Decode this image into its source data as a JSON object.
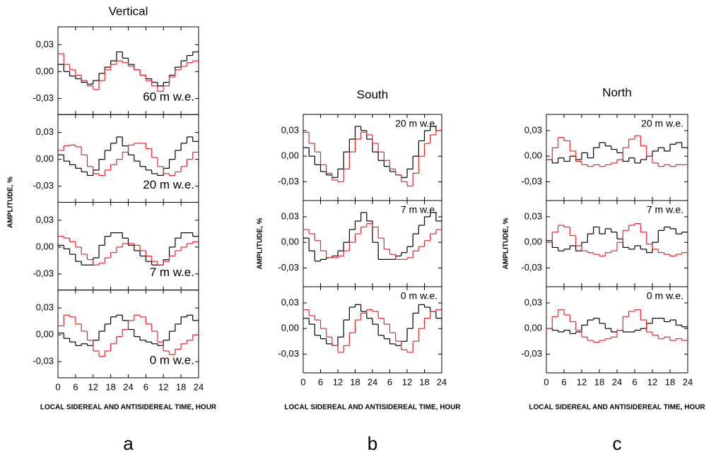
{
  "chart_data": [
    {
      "type": "step",
      "title": "Vertical",
      "ylabel": "AMPLITUDE, %",
      "xlabel": "LOCAL SIDEREAL AND ANTISIDEREAL TIME, HOUR",
      "caption": "a",
      "xlim": [
        0,
        48
      ],
      "xticks": [
        0,
        6,
        12,
        18,
        24,
        {
          "value": 30,
          "label": "6"
        },
        {
          "value": 36,
          "label": "12"
        },
        {
          "value": 42,
          "label": "18"
        },
        {
          "value": 48,
          "label": "24"
        }
      ],
      "x": [
        1,
        3,
        5,
        7,
        9,
        11,
        13,
        15,
        17,
        19,
        21,
        23,
        25,
        27,
        29,
        31,
        33,
        35,
        37,
        39,
        41,
        43,
        45,
        47
      ],
      "ylim": [
        -0.048,
        0.05
      ],
      "yticks": [
        {
          "value": 0.03,
          "label": "0,03"
        },
        {
          "value": 0,
          "label": "0,00"
        },
        {
          "value": -0.03,
          "label": "-0,03"
        }
      ],
      "panels": [
        {
          "annotation": "60 m w.e.",
          "series": [
            {
              "color": "#000000",
              "values": [
                0.008,
                0.0,
                -0.005,
                -0.008,
                -0.012,
                -0.014,
                -0.01,
                -0.002,
                0.005,
                0.012,
                0.022,
                0.015,
                0.008,
                0.002,
                -0.004,
                -0.008,
                -0.012,
                -0.016,
                -0.012,
                -0.004,
                0.005,
                0.012,
                0.018,
                0.022
              ]
            },
            {
              "color": "#e8262a",
              "values": [
                0.02,
                0.008,
                0.002,
                -0.004,
                -0.01,
                -0.016,
                -0.02,
                -0.01,
                0.002,
                0.008,
                0.012,
                0.01,
                0.006,
                0.002,
                -0.004,
                -0.01,
                -0.016,
                -0.022,
                -0.016,
                -0.006,
                0.002,
                0.006,
                0.01,
                0.012
              ]
            }
          ]
        },
        {
          "annotation": "20 m w.e.",
          "series": [
            {
              "color": "#000000",
              "values": [
                0.005,
                -0.002,
                -0.006,
                -0.01,
                -0.014,
                -0.018,
                -0.012,
                0.0,
                0.01,
                0.018,
                0.025,
                0.015,
                0.005,
                -0.002,
                -0.008,
                -0.012,
                -0.016,
                -0.018,
                -0.01,
                0.0,
                0.01,
                0.018,
                0.025,
                0.02
              ]
            },
            {
              "color": "#e8262a",
              "values": [
                0.01,
                0.015,
                0.016,
                0.014,
                0.005,
                -0.008,
                -0.016,
                -0.018,
                -0.012,
                -0.006,
                0.0,
                0.008,
                0.016,
                0.018,
                0.018,
                0.012,
                0.002,
                -0.008,
                -0.016,
                -0.018,
                -0.014,
                -0.008,
                0.0,
                0.008
              ]
            }
          ]
        },
        {
          "annotation": "7 m w.e.",
          "series": [
            {
              "color": "#000000",
              "values": [
                0.002,
                -0.002,
                -0.008,
                -0.016,
                -0.02,
                -0.02,
                -0.012,
                0.002,
                0.012,
                0.016,
                0.016,
                0.01,
                0.002,
                -0.004,
                -0.01,
                -0.016,
                -0.02,
                -0.02,
                -0.014,
                0.0,
                0.01,
                0.016,
                0.016,
                0.012
              ]
            },
            {
              "color": "#e8262a",
              "values": [
                0.012,
                0.01,
                0.006,
                0.0,
                -0.008,
                -0.014,
                -0.02,
                -0.018,
                -0.012,
                -0.006,
                0.0,
                0.004,
                0.004,
                0.002,
                -0.004,
                -0.01,
                -0.016,
                -0.02,
                -0.016,
                -0.01,
                -0.004,
                0.0,
                0.004,
                0.006
              ]
            }
          ]
        },
        {
          "annotation": "0 m w.e.",
          "series": [
            {
              "color": "#000000",
              "values": [
                0.002,
                -0.004,
                -0.008,
                -0.012,
                -0.01,
                -0.012,
                -0.006,
                0.004,
                0.012,
                0.02,
                0.022,
                0.016,
                0.006,
                -0.002,
                -0.006,
                -0.008,
                -0.01,
                -0.012,
                -0.006,
                0.004,
                0.012,
                0.02,
                0.022,
                0.016
              ]
            },
            {
              "color": "#e8262a",
              "values": [
                0.01,
                0.022,
                0.02,
                0.012,
                0.004,
                -0.006,
                -0.018,
                -0.024,
                -0.018,
                -0.01,
                -0.002,
                0.006,
                0.016,
                0.022,
                0.02,
                0.012,
                0.004,
                -0.008,
                -0.018,
                -0.022,
                -0.016,
                -0.01,
                -0.006,
                0.0
              ]
            }
          ]
        }
      ]
    },
    {
      "type": "step",
      "title": "South",
      "ylabel": "AMPLITUDE, %",
      "xlabel": "LOCAL SIDEREAL AND ANTISIDEREAL TIME, HOUR",
      "caption": "b",
      "xlim": [
        0,
        48
      ],
      "xticks": [
        0,
        6,
        12,
        18,
        24,
        {
          "value": 30,
          "label": "6"
        },
        {
          "value": 36,
          "label": "12"
        },
        {
          "value": 42,
          "label": "18"
        },
        {
          "value": 48,
          "label": "24"
        }
      ],
      "x": [
        1,
        3,
        5,
        7,
        9,
        11,
        13,
        15,
        17,
        19,
        21,
        23,
        25,
        27,
        29,
        31,
        33,
        35,
        37,
        39,
        41,
        43,
        45,
        47
      ],
      "ylim": [
        -0.052,
        0.049
      ],
      "yticks": [
        {
          "value": 0.03,
          "label": "0,03"
        },
        {
          "value": 0,
          "label": "0,00"
        },
        {
          "value": -0.03,
          "label": "-0,03"
        }
      ],
      "panels": [
        {
          "annotation": "20 m w.e.",
          "series": [
            {
              "color": "#000000",
              "values": [
                0.01,
                0.0,
                -0.01,
                -0.018,
                -0.022,
                -0.025,
                -0.015,
                0.005,
                0.02,
                0.035,
                0.03,
                0.02,
                0.005,
                -0.005,
                -0.012,
                -0.018,
                -0.022,
                -0.025,
                -0.015,
                0.0,
                0.018,
                0.03,
                0.035,
                0.03
              ]
            },
            {
              "color": "#e8262a",
              "values": [
                0.028,
                0.015,
                0.005,
                -0.01,
                -0.02,
                -0.028,
                -0.03,
                -0.015,
                0.005,
                0.02,
                0.028,
                0.025,
                0.015,
                0.005,
                -0.005,
                -0.015,
                -0.022,
                -0.03,
                -0.035,
                -0.02,
                0.0,
                0.015,
                0.025,
                0.03
              ]
            }
          ]
        },
        {
          "annotation": "7 m w.e.",
          "series": [
            {
              "color": "#000000",
              "values": [
                0.005,
                -0.01,
                -0.022,
                -0.02,
                -0.018,
                -0.016,
                -0.01,
                0.0,
                0.015,
                0.025,
                0.035,
                0.025,
                0.0,
                -0.02,
                -0.02,
                -0.02,
                -0.016,
                -0.012,
                -0.005,
                0.01,
                0.02,
                0.03,
                0.035,
                0.025
              ]
            },
            {
              "color": "#e8262a",
              "values": [
                0.015,
                0.01,
                0.002,
                -0.01,
                -0.018,
                -0.018,
                -0.016,
                -0.01,
                0.0,
                0.01,
                0.018,
                0.022,
                0.018,
                0.005,
                -0.008,
                -0.014,
                -0.02,
                -0.02,
                -0.018,
                -0.01,
                -0.005,
                0.002,
                0.01,
                0.015
              ]
            }
          ]
        },
        {
          "annotation": "0 m w.e.",
          "series": [
            {
              "color": "#000000",
              "values": [
                0.012,
                0.005,
                -0.008,
                -0.012,
                -0.018,
                -0.02,
                -0.01,
                0.01,
                0.025,
                0.028,
                0.02,
                0.012,
                0.005,
                -0.008,
                -0.012,
                -0.018,
                -0.02,
                -0.015,
                0.0,
                0.018,
                0.028,
                0.025,
                0.02,
                0.012
              ]
            },
            {
              "color": "#e8262a",
              "values": [
                0.022,
                0.015,
                0.01,
                0.0,
                -0.01,
                -0.02,
                -0.028,
                -0.02,
                -0.005,
                0.01,
                0.018,
                0.022,
                0.02,
                0.012,
                0.005,
                -0.005,
                -0.015,
                -0.025,
                -0.028,
                -0.015,
                0.0,
                0.012,
                0.02,
                0.022
              ]
            }
          ]
        }
      ]
    },
    {
      "type": "step",
      "title": "North",
      "ylabel": "AMPLITUDE, %",
      "xlabel": "LOCAL SIDEREAL AND ANTISIDEREAL TIME, HOUR",
      "caption": "c",
      "xlim": [
        0,
        48
      ],
      "xticks": [
        0,
        6,
        12,
        18,
        24,
        {
          "value": 30,
          "label": "6"
        },
        {
          "value": 36,
          "label": "12"
        },
        {
          "value": 42,
          "label": "18"
        },
        {
          "value": 48,
          "label": "24"
        }
      ],
      "x": [
        1,
        3,
        5,
        7,
        9,
        11,
        13,
        15,
        17,
        19,
        21,
        23,
        25,
        27,
        29,
        31,
        33,
        35,
        37,
        39,
        41,
        43,
        45,
        47
      ],
      "ylim": [
        -0.052,
        0.049
      ],
      "yticks": [
        {
          "value": 0.03,
          "label": "0,03"
        },
        {
          "value": 0,
          "label": "0,00"
        },
        {
          "value": -0.03,
          "label": "-0,03"
        }
      ],
      "panels": [
        {
          "annotation": "20 m w.e.",
          "series": [
            {
              "color": "#000000",
              "values": [
                -0.004,
                -0.008,
                -0.002,
                -0.006,
                0.0,
                -0.004,
                0.004,
                -0.002,
                0.01,
                0.016,
                0.012,
                0.008,
                0.004,
                -0.006,
                -0.002,
                -0.008,
                -0.004,
                0.0,
                0.006,
                0.01,
                0.006,
                0.014,
                0.016,
                0.01
              ]
            },
            {
              "color": "#e8262a",
              "values": [
                -0.004,
                0.01,
                0.022,
                0.018,
                0.006,
                -0.006,
                -0.01,
                -0.012,
                -0.01,
                -0.012,
                -0.01,
                -0.008,
                -0.004,
                0.01,
                0.02,
                0.024,
                0.012,
                0.0,
                -0.008,
                -0.012,
                -0.01,
                -0.012,
                -0.01,
                -0.01
              ]
            }
          ]
        },
        {
          "annotation": "7 m w.e.",
          "series": [
            {
              "color": "#000000",
              "values": [
                0.002,
                -0.006,
                -0.01,
                -0.008,
                -0.004,
                -0.01,
                0.0,
                0.01,
                0.018,
                0.01,
                0.016,
                0.012,
                0.004,
                -0.006,
                -0.008,
                -0.004,
                -0.008,
                -0.012,
                0.0,
                0.014,
                0.018,
                0.016,
                0.01,
                0.012
              ]
            },
            {
              "color": "#e8262a",
              "values": [
                0.0,
                0.012,
                0.02,
                0.018,
                0.008,
                -0.004,
                -0.01,
                -0.012,
                -0.014,
                -0.016,
                -0.012,
                -0.01,
                0.0,
                0.014,
                0.02,
                0.022,
                0.012,
                -0.002,
                -0.008,
                -0.012,
                -0.014,
                -0.016,
                -0.014,
                -0.012
              ]
            }
          ]
        },
        {
          "annotation": "0 m w.e.",
          "series": [
            {
              "color": "#000000",
              "values": [
                0.0,
                -0.002,
                -0.004,
                -0.002,
                -0.006,
                -0.004,
                0.004,
                0.01,
                0.012,
                0.006,
                0.0,
                -0.004,
                -0.002,
                -0.004,
                -0.004,
                -0.002,
                0.0,
                0.006,
                0.012,
                0.012,
                0.008,
                0.01,
                0.004,
                0.002
              ]
            },
            {
              "color": "#e8262a",
              "values": [
                0.0,
                0.014,
                0.022,
                0.016,
                0.008,
                -0.002,
                -0.01,
                -0.014,
                -0.016,
                -0.014,
                -0.012,
                -0.01,
                -0.002,
                0.014,
                0.02,
                0.022,
                0.01,
                -0.004,
                -0.008,
                -0.012,
                -0.01,
                -0.014,
                -0.012,
                -0.014
              ]
            }
          ]
        }
      ]
    }
  ]
}
